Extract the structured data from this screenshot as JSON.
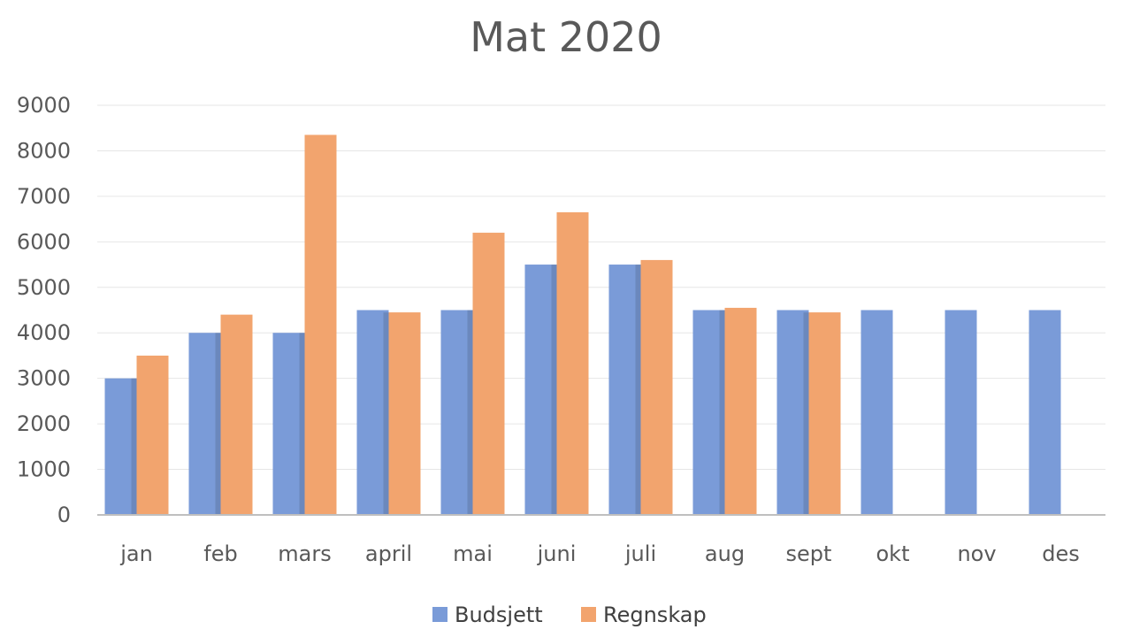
{
  "chart_data": {
    "type": "bar",
    "title": "Mat 2020",
    "xlabel": "",
    "ylabel": "",
    "ylim": [
      0,
      9000
    ],
    "yticks": [
      0,
      1000,
      2000,
      3000,
      4000,
      5000,
      6000,
      7000,
      8000,
      9000
    ],
    "grid": true,
    "legend_position": "bottom",
    "categories": [
      "jan",
      "feb",
      "mars",
      "april",
      "mai",
      "juni",
      "juli",
      "aug",
      "sept",
      "okt",
      "nov",
      "des"
    ],
    "series": [
      {
        "name": "Budsjett",
        "color": "#7A9BD8",
        "values": [
          3000,
          4000,
          4000,
          4500,
          4500,
          5500,
          5500,
          4500,
          4500,
          4500,
          4500,
          4500
        ]
      },
      {
        "name": "Regnskap",
        "color": "#F2A46E",
        "values": [
          3500,
          4400,
          8350,
          4450,
          6200,
          6650,
          5600,
          4550,
          4450,
          null,
          null,
          null
        ]
      }
    ]
  }
}
